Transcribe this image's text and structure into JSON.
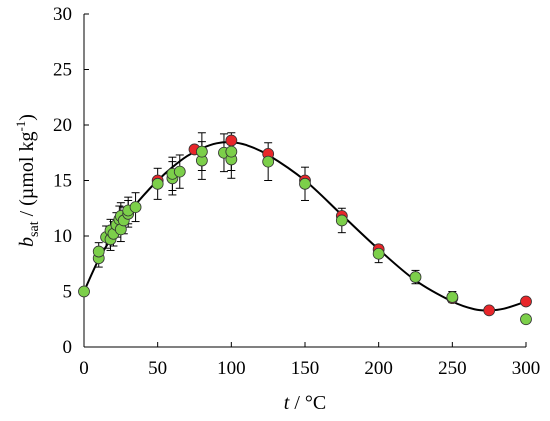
{
  "chart_data": {
    "type": "scatter",
    "xlabel": {
      "var": "t",
      "rest": " / °C"
    },
    "ylabel": {
      "var": "b",
      "sub": "sat",
      "rest": " / (µmol kg",
      "sup": "-1",
      "close": ")"
    },
    "xlim": [
      0,
      300
    ],
    "ylim": [
      0,
      30
    ],
    "xticks": [
      0,
      50,
      100,
      150,
      200,
      250,
      300
    ],
    "yticks": [
      0,
      5,
      10,
      15,
      20,
      25,
      30
    ],
    "grid": false,
    "legend": "none",
    "colors": {
      "red": "#e8262a",
      "green": "#7ccf4a",
      "curve": "#000000"
    },
    "series": [
      {
        "marker": "red-circle",
        "points": [
          {
            "x": 50,
            "y": 15.0
          },
          {
            "x": 75,
            "y": 17.8
          },
          {
            "x": 100,
            "y": 18.6
          },
          {
            "x": 125,
            "y": 17.4
          },
          {
            "x": 150,
            "y": 15.0
          },
          {
            "x": 175,
            "y": 11.8
          },
          {
            "x": 200,
            "y": 8.8
          },
          {
            "x": 250,
            "y": 4.4
          },
          {
            "x": 275,
            "y": 3.3
          },
          {
            "x": 300,
            "y": 4.1
          }
        ]
      },
      {
        "marker": "green-circle",
        "points": [
          {
            "x": 0,
            "y": 5.0,
            "err": 0.3
          },
          {
            "x": 10,
            "y": 8.0,
            "err": 0.8
          },
          {
            "x": 10,
            "y": 8.6,
            "err": 0.8
          },
          {
            "x": 15,
            "y": 9.9,
            "err": 1.0
          },
          {
            "x": 18,
            "y": 9.7,
            "err": 1.0
          },
          {
            "x": 18,
            "y": 10.5,
            "err": 1.0
          },
          {
            "x": 20,
            "y": 10.2,
            "err": 1.1
          },
          {
            "x": 22,
            "y": 11.0,
            "err": 1.1
          },
          {
            "x": 24,
            "y": 11.5,
            "err": 1.2
          },
          {
            "x": 25,
            "y": 10.6,
            "err": 1.1
          },
          {
            "x": 25,
            "y": 11.8,
            "err": 1.2
          },
          {
            "x": 27,
            "y": 11.4,
            "err": 1.2
          },
          {
            "x": 30,
            "y": 12.0,
            "err": 1.2
          },
          {
            "x": 30,
            "y": 12.3,
            "err": 1.2
          },
          {
            "x": 35,
            "y": 12.6,
            "err": 1.3
          },
          {
            "x": 50,
            "y": 14.7,
            "err": 1.4
          },
          {
            "x": 60,
            "y": 15.2,
            "err": 1.5
          },
          {
            "x": 60,
            "y": 15.6,
            "err": 1.5
          },
          {
            "x": 65,
            "y": 15.8,
            "err": 1.5
          },
          {
            "x": 80,
            "y": 16.8,
            "err": 1.7
          },
          {
            "x": 80,
            "y": 17.6,
            "err": 1.7
          },
          {
            "x": 95,
            "y": 17.5,
            "err": 1.7
          },
          {
            "x": 100,
            "y": 16.9,
            "err": 1.7
          },
          {
            "x": 100,
            "y": 17.6,
            "err": 1.7
          },
          {
            "x": 125,
            "y": 16.7,
            "err": 1.7
          },
          {
            "x": 150,
            "y": 14.7,
            "err": 1.5
          },
          {
            "x": 175,
            "y": 11.4,
            "err": 1.1
          },
          {
            "x": 200,
            "y": 8.4,
            "err": 0.8
          },
          {
            "x": 225,
            "y": 6.3,
            "err": 0.6
          },
          {
            "x": 250,
            "y": 4.5,
            "err": 0.5
          },
          {
            "x": 300,
            "y": 2.5,
            "err": 0.3
          }
        ]
      },
      {
        "marker": "fit-curve",
        "points": [
          {
            "x": 0,
            "y": 5.0
          },
          {
            "x": 10,
            "y": 7.9
          },
          {
            "x": 20,
            "y": 10.1
          },
          {
            "x": 30,
            "y": 12.0
          },
          {
            "x": 40,
            "y": 13.6
          },
          {
            "x": 50,
            "y": 15.0
          },
          {
            "x": 60,
            "y": 16.2
          },
          {
            "x": 70,
            "y": 17.2
          },
          {
            "x": 80,
            "y": 17.9
          },
          {
            "x": 90,
            "y": 18.35
          },
          {
            "x": 100,
            "y": 18.45
          },
          {
            "x": 110,
            "y": 18.2
          },
          {
            "x": 125,
            "y": 17.3
          },
          {
            "x": 150,
            "y": 15.0
          },
          {
            "x": 175,
            "y": 11.9
          },
          {
            "x": 200,
            "y": 8.8
          },
          {
            "x": 225,
            "y": 6.0
          },
          {
            "x": 250,
            "y": 4.1
          },
          {
            "x": 265,
            "y": 3.4
          },
          {
            "x": 275,
            "y": 3.3
          },
          {
            "x": 285,
            "y": 3.45
          },
          {
            "x": 300,
            "y": 4.1
          }
        ]
      }
    ]
  }
}
